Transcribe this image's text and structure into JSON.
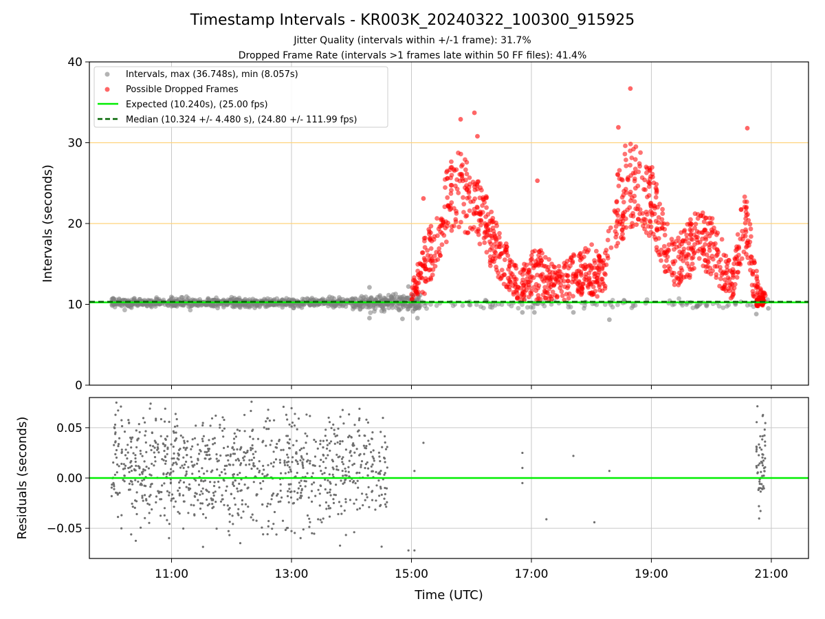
{
  "chart_data": {
    "type": "scatter",
    "title": "Timestamp Intervals - KR003K_20240322_100300_915925",
    "subtitle_lines": [
      "Jitter Quality (intervals within +/-1 frame): 31.7%",
      "Dropped Frame Rate (intervals >1 frames late within 50 FF files): 41.4%"
    ],
    "x_unit": "hours UTC",
    "xlabel": "Time (UTC)",
    "xlim": [
      9.63,
      21.62
    ],
    "xticks": [
      11,
      13,
      15,
      17,
      19,
      21
    ],
    "xtick_labels": [
      "11:00",
      "13:00",
      "15:00",
      "17:00",
      "19:00",
      "21:00"
    ],
    "colors": {
      "intervals": "#808080",
      "dropped": "#ff0000",
      "expected": "#00ee00",
      "median": "#006400",
      "warning_lines": "#ffd37a",
      "grid": "#c8c8c8",
      "residuals": "#6e6e6e"
    },
    "top_panel": {
      "ylabel": "Intervals (seconds)",
      "ylim": [
        0,
        40
      ],
      "yticks": [
        0,
        10,
        20,
        30,
        40
      ],
      "grid": true,
      "legend_position": "upper-left",
      "legend": [
        {
          "label": "Intervals, max (36.748s), min (8.057s)",
          "kind": "point",
          "color": "#808080"
        },
        {
          "label": "Possible Dropped Frames",
          "kind": "point",
          "color": "#ff0000"
        },
        {
          "label": "Expected (10.240s), (25.00 fps)",
          "kind": "line",
          "color": "#00ee00"
        },
        {
          "label": "Median (10.324 +/- 4.480 s), (24.80 +/- 111.99 fps)",
          "kind": "dashed",
          "color": "#006400"
        }
      ],
      "expected_interval": 10.24,
      "median_interval": 10.324,
      "warning_lines": [
        20,
        30
      ],
      "interval_stats": {
        "max": 36.748,
        "min": 8.057
      },
      "intervals_profile": {
        "x_range": [
          10.0,
          15.15
        ],
        "center": 10.2,
        "spread": 0.25,
        "approx_points": 1000,
        "notable_low_points": [
          [
            14.3,
            8.3
          ],
          [
            14.85,
            8.2
          ],
          [
            15.1,
            8.3
          ]
        ],
        "notable_high_points": [
          [
            14.3,
            12.1
          ],
          [
            14.95,
            12.2
          ]
        ]
      },
      "dropped_profile": {
        "x_range": [
          15.0,
          20.9
        ],
        "approx_points": 1200,
        "envelope": [
          [
            15.0,
            10.5,
            12.0
          ],
          [
            15.2,
            11.0,
            18.0
          ],
          [
            15.45,
            15.0,
            22.0
          ],
          [
            15.6,
            18.0,
            27.5
          ],
          [
            15.8,
            19.0,
            29.0
          ],
          [
            16.0,
            18.5,
            27.0
          ],
          [
            16.2,
            16.5,
            24.5
          ],
          [
            16.4,
            13.5,
            20.5
          ],
          [
            16.6,
            12.0,
            17.5
          ],
          [
            16.8,
            10.3,
            14.0
          ],
          [
            17.0,
            10.5,
            16.5
          ],
          [
            17.2,
            10.5,
            17.0
          ],
          [
            17.4,
            10.5,
            14.5
          ],
          [
            17.6,
            10.5,
            15.5
          ],
          [
            17.8,
            10.8,
            17.0
          ],
          [
            18.0,
            10.8,
            17.5
          ],
          [
            18.2,
            11.0,
            15.5
          ],
          [
            18.4,
            16.5,
            25.5
          ],
          [
            18.6,
            19.0,
            30.5
          ],
          [
            18.8,
            20.0,
            29.5
          ],
          [
            19.0,
            18.0,
            27.5
          ],
          [
            19.2,
            14.0,
            21.5
          ],
          [
            19.4,
            12.0,
            18.5
          ],
          [
            19.6,
            13.0,
            20.0
          ],
          [
            19.8,
            14.5,
            22.0
          ],
          [
            20.0,
            13.5,
            21.0
          ],
          [
            20.2,
            11.5,
            18.0
          ],
          [
            20.35,
            10.5,
            14.5
          ],
          [
            20.5,
            15.0,
            22.0
          ],
          [
            20.6,
            16.0,
            24.5
          ],
          [
            20.7,
            11.0,
            16.0
          ],
          [
            20.85,
            10.2,
            11.5
          ]
        ],
        "notable_points": [
          [
            16.05,
            33.7
          ],
          [
            15.82,
            32.9
          ],
          [
            18.65,
            36.7
          ],
          [
            18.45,
            31.9
          ],
          [
            20.6,
            31.8
          ],
          [
            16.1,
            30.8
          ],
          [
            15.2,
            23.1
          ],
          [
            17.1,
            25.3
          ]
        ]
      },
      "late_cluster_intervals": [
        [
          16.85,
          9.0
        ],
        [
          17.05,
          9.0
        ],
        [
          17.7,
          9.0
        ],
        [
          18.3,
          8.1
        ],
        [
          20.75,
          8.8
        ],
        [
          20.95,
          9.5
        ]
      ]
    },
    "bottom_panel": {
      "ylabel": "Residuals (seconds)",
      "ylim": [
        -0.08,
        0.08
      ],
      "yticks": [
        -0.05,
        0.0,
        0.05
      ],
      "ytick_labels": [
        "−0.05",
        "0.00",
        "0.05"
      ],
      "grid": true,
      "zero_line_color": "#00ee00",
      "residual_profile": {
        "dense_x_range": [
          10.0,
          14.6
        ],
        "center": 0.01,
        "spread": 0.028,
        "approx_points": 1000,
        "late_cluster_x": [
          20.75,
          20.9
        ]
      },
      "isolated_points": [
        [
          15.05,
          0.007
        ],
        [
          15.2,
          0.035
        ],
        [
          14.95,
          -0.072
        ],
        [
          15.05,
          -0.072
        ],
        [
          16.85,
          0.025
        ],
        [
          16.85,
          0.01
        ],
        [
          16.85,
          -0.005
        ],
        [
          17.25,
          -0.041
        ],
        [
          17.7,
          0.022
        ],
        [
          18.05,
          -0.044
        ],
        [
          18.3,
          0.007
        ]
      ]
    }
  }
}
